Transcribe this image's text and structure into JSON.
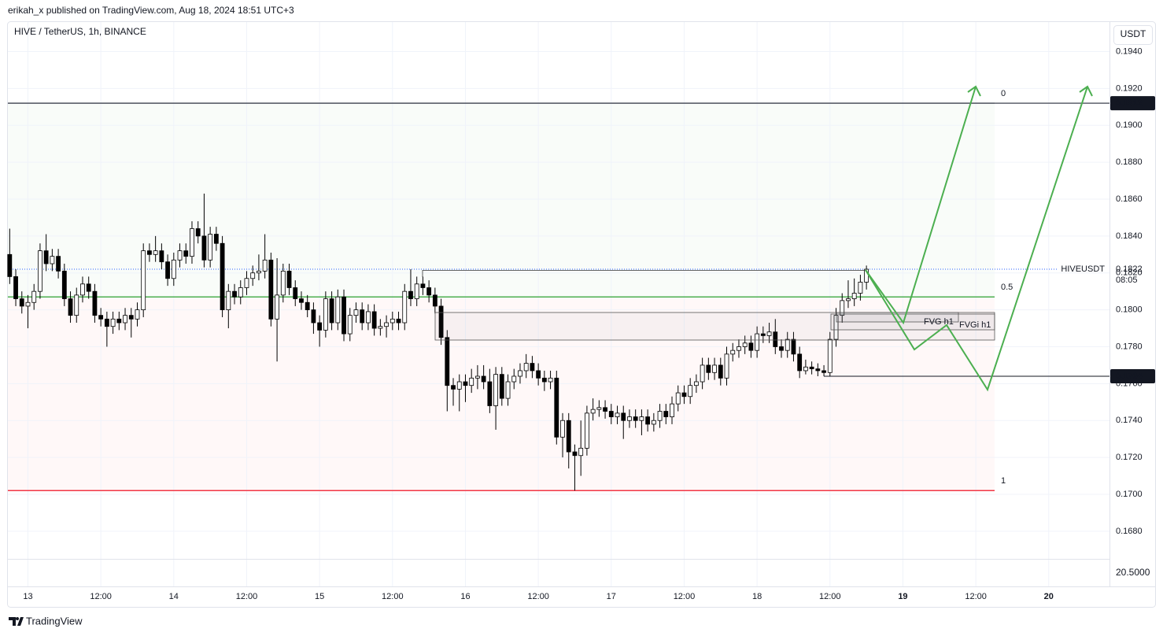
{
  "header": {
    "byline": "erikah_x published on TradingView.com, Aug 18, 2024 18:51 UTC+3"
  },
  "footer": {
    "brand": "TradingView"
  },
  "chart_data": {
    "type": "candlestick",
    "title": "HIVE / TetherUS, 1h, BINANCE",
    "currency": "USDT",
    "lower_pane_label": "20.5000",
    "grid": true,
    "ylim": [
      0.1665,
      0.1956
    ],
    "xlim": [
      -0.3,
      181
    ],
    "yticks": [
      {
        "value": 0.194,
        "label": "0.1940"
      },
      {
        "value": 0.192,
        "label": "0.1920"
      },
      {
        "value": 0.19,
        "label": "0.1900"
      },
      {
        "value": 0.188,
        "label": "0.1880"
      },
      {
        "value": 0.186,
        "label": "0.1860"
      },
      {
        "value": 0.184,
        "label": "0.1840"
      },
      {
        "value": 0.182,
        "label": "0.1820"
      },
      {
        "value": 0.18,
        "label": "0.1800"
      },
      {
        "value": 0.178,
        "label": "0.1780"
      },
      {
        "value": 0.176,
        "label": "0.1760"
      },
      {
        "value": 0.174,
        "label": "0.1740"
      },
      {
        "value": 0.172,
        "label": "0.1720"
      },
      {
        "value": 0.17,
        "label": "0.1700"
      },
      {
        "value": 0.168,
        "label": "0.1680"
      }
    ],
    "xticks": [
      {
        "value": 3,
        "label": "13"
      },
      {
        "value": 15,
        "label": "12:00"
      },
      {
        "value": 27,
        "label": "14"
      },
      {
        "value": 39,
        "label": "12:00"
      },
      {
        "value": 51,
        "label": "15"
      },
      {
        "value": 63,
        "label": "12:00"
      },
      {
        "value": 75,
        "label": "16"
      },
      {
        "value": 87,
        "label": "12:00"
      },
      {
        "value": 99,
        "label": "17"
      },
      {
        "value": 111,
        "label": "12:00"
      },
      {
        "value": 123,
        "label": "18"
      },
      {
        "value": 135,
        "label": "12:00"
      },
      {
        "value": 147,
        "label": "19"
      },
      {
        "value": 159,
        "label": "12:00"
      },
      {
        "value": 171,
        "label": "20"
      }
    ],
    "up_color": "#ffffff",
    "down_color": "#000000",
    "wick_color": "#000000",
    "fib_levels": [
      {
        "value": 0.1912,
        "label": "0",
        "color": "#787b86"
      },
      {
        "value": 0.1807,
        "label": "0.5",
        "color": "#4caf50"
      },
      {
        "value": 0.1702,
        "label": "1",
        "color": "#f23645"
      }
    ],
    "price_badges": [
      {
        "value": 0.1912,
        "label": "0.1912"
      },
      {
        "value": 0.1764,
        "label": "0.1764"
      }
    ],
    "last_price": {
      "value": 0.1822,
      "label": "0.1822",
      "symbol": "HIVEUSDT",
      "countdown": "08:05"
    },
    "annotations": [
      "FVG h1",
      "FVGi h1"
    ],
    "candles": [
      [
        0.183,
        0.1844,
        0.1814,
        0.1818
      ],
      [
        0.1818,
        0.1822,
        0.1802,
        0.1806
      ],
      [
        0.1806,
        0.181,
        0.1798,
        0.1802
      ],
      [
        0.1802,
        0.1808,
        0.179,
        0.1804
      ],
      [
        0.1804,
        0.1814,
        0.18,
        0.181
      ],
      [
        0.181,
        0.1836,
        0.1806,
        0.1832
      ],
      [
        0.1832,
        0.1841,
        0.1821,
        0.1825
      ],
      [
        0.1825,
        0.1833,
        0.1821,
        0.1829
      ],
      [
        0.1829,
        0.1833,
        0.1817,
        0.1821
      ],
      [
        0.1821,
        0.1825,
        0.1802,
        0.1806
      ],
      [
        0.1806,
        0.181,
        0.1793,
        0.1797
      ],
      [
        0.1797,
        0.1812,
        0.1793,
        0.1808
      ],
      [
        0.1808,
        0.1818,
        0.1804,
        0.1814
      ],
      [
        0.1814,
        0.1818,
        0.1806,
        0.181
      ],
      [
        0.181,
        0.1814,
        0.1793,
        0.1797
      ],
      [
        0.1797,
        0.1801,
        0.1791,
        0.1795
      ],
      [
        0.1795,
        0.1799,
        0.178,
        0.1791
      ],
      [
        0.1791,
        0.1799,
        0.1787,
        0.1795
      ],
      [
        0.1795,
        0.1799,
        0.1789,
        0.1793
      ],
      [
        0.1793,
        0.1801,
        0.1789,
        0.1797
      ],
      [
        0.1797,
        0.1801,
        0.1785,
        0.1795
      ],
      [
        0.1795,
        0.1804,
        0.1791,
        0.18
      ],
      [
        0.18,
        0.1836,
        0.1796,
        0.1832
      ],
      [
        0.1832,
        0.1836,
        0.1826,
        0.183
      ],
      [
        0.183,
        0.184,
        0.1826,
        0.1832
      ],
      [
        0.1832,
        0.1836,
        0.1822,
        0.1826
      ],
      [
        0.1826,
        0.183,
        0.1813,
        0.1817
      ],
      [
        0.1817,
        0.1831,
        0.1813,
        0.1827
      ],
      [
        0.1827,
        0.1836,
        0.1823,
        0.1832
      ],
      [
        0.1832,
        0.1836,
        0.1825,
        0.1829
      ],
      [
        0.1829,
        0.1848,
        0.1825,
        0.1844
      ],
      [
        0.1844,
        0.1848,
        0.1836,
        0.184
      ],
      [
        0.184,
        0.1863,
        0.1823,
        0.1827
      ],
      [
        0.1827,
        0.1845,
        0.1823,
        0.1841
      ],
      [
        0.1841,
        0.1845,
        0.1832,
        0.1836
      ],
      [
        0.1836,
        0.184,
        0.1796,
        0.18
      ],
      [
        0.18,
        0.1814,
        0.179,
        0.181
      ],
      [
        0.181,
        0.1814,
        0.1803,
        0.1807
      ],
      [
        0.1807,
        0.1816,
        0.1803,
        0.1812
      ],
      [
        0.1812,
        0.1821,
        0.1808,
        0.1817
      ],
      [
        0.1817,
        0.1824,
        0.1813,
        0.182
      ],
      [
        0.182,
        0.183,
        0.1816,
        0.1821
      ],
      [
        0.1821,
        0.1841,
        0.1817,
        0.1827
      ],
      [
        0.1827,
        0.1831,
        0.1791,
        0.1795
      ],
      [
        0.1795,
        0.1828,
        0.1772,
        0.1808
      ],
      [
        0.1808,
        0.1825,
        0.1804,
        0.1821
      ],
      [
        0.1821,
        0.1825,
        0.1808,
        0.1812
      ],
      [
        0.1812,
        0.1816,
        0.1802,
        0.1806
      ],
      [
        0.1806,
        0.181,
        0.18,
        0.1804
      ],
      [
        0.1804,
        0.1808,
        0.1796,
        0.18
      ],
      [
        0.18,
        0.1804,
        0.1787,
        0.1793
      ],
      [
        0.1793,
        0.1797,
        0.178,
        0.1789
      ],
      [
        0.1789,
        0.181,
        0.1785,
        0.1806
      ],
      [
        0.1806,
        0.181,
        0.1789,
        0.1793
      ],
      [
        0.1793,
        0.1811,
        0.1789,
        0.1807
      ],
      [
        0.1807,
        0.1811,
        0.1783,
        0.1787
      ],
      [
        0.1787,
        0.1801,
        0.1783,
        0.1797
      ],
      [
        0.1797,
        0.1804,
        0.1793,
        0.18
      ],
      [
        0.18,
        0.1804,
        0.1789,
        0.1793
      ],
      [
        0.1793,
        0.1803,
        0.1789,
        0.1799
      ],
      [
        0.1799,
        0.1803,
        0.1786,
        0.179
      ],
      [
        0.179,
        0.1795,
        0.1786,
        0.1791
      ],
      [
        0.1791,
        0.1797,
        0.1785,
        0.1793
      ],
      [
        0.1793,
        0.1799,
        0.1789,
        0.1795
      ],
      [
        0.1795,
        0.1799,
        0.1789,
        0.1793
      ],
      [
        0.1793,
        0.1814,
        0.1789,
        0.181
      ],
      [
        0.181,
        0.1822,
        0.1802,
        0.1806
      ],
      [
        0.1806,
        0.1818,
        0.1802,
        0.1814
      ],
      [
        0.1814,
        0.1818,
        0.1808,
        0.1812
      ],
      [
        0.1812,
        0.1816,
        0.1804,
        0.1808
      ],
      [
        0.1808,
        0.1812,
        0.1798,
        0.1802
      ],
      [
        0.1802,
        0.1806,
        0.1781,
        0.1785
      ],
      [
        0.1785,
        0.1789,
        0.1745,
        0.1759
      ],
      [
        0.1759,
        0.1763,
        0.1748,
        0.1757
      ],
      [
        0.1757,
        0.1765,
        0.1745,
        0.1761
      ],
      [
        0.1761,
        0.1765,
        0.175,
        0.1759
      ],
      [
        0.1759,
        0.1768,
        0.1755,
        0.1763
      ],
      [
        0.1763,
        0.177,
        0.1757,
        0.1764
      ],
      [
        0.1764,
        0.177,
        0.1757,
        0.1761
      ],
      [
        0.1761,
        0.1768,
        0.1744,
        0.1748
      ],
      [
        0.1748,
        0.1769,
        0.1735,
        0.1765
      ],
      [
        0.1765,
        0.1769,
        0.1748,
        0.1752
      ],
      [
        0.1752,
        0.1765,
        0.1748,
        0.1761
      ],
      [
        0.1761,
        0.1768,
        0.1757,
        0.1764
      ],
      [
        0.1764,
        0.1771,
        0.176,
        0.1767
      ],
      [
        0.1767,
        0.1776,
        0.1763,
        0.1771
      ],
      [
        0.1771,
        0.1775,
        0.1763,
        0.1767
      ],
      [
        0.1767,
        0.1771,
        0.1759,
        0.1763
      ],
      [
        0.1763,
        0.1767,
        0.1756,
        0.1761
      ],
      [
        0.1761,
        0.1767,
        0.1757,
        0.1763
      ],
      [
        0.1763,
        0.1767,
        0.1727,
        0.1731
      ],
      [
        0.1731,
        0.1744,
        0.172,
        0.174
      ],
      [
        0.174,
        0.1744,
        0.1714,
        0.1723
      ],
      [
        0.1723,
        0.1727,
        0.1702,
        0.1721
      ],
      [
        0.1721,
        0.174,
        0.171,
        0.1725
      ],
      [
        0.1725,
        0.1748,
        0.1721,
        0.1744
      ],
      [
        0.1744,
        0.1752,
        0.174,
        0.1746
      ],
      [
        0.1746,
        0.1751,
        0.1742,
        0.1747
      ],
      [
        0.1747,
        0.1751,
        0.1741,
        0.1745
      ],
      [
        0.1745,
        0.1749,
        0.1738,
        0.1742
      ],
      [
        0.1742,
        0.1748,
        0.1738,
        0.1744
      ],
      [
        0.1744,
        0.1748,
        0.173,
        0.174
      ],
      [
        0.174,
        0.1746,
        0.1736,
        0.1742
      ],
      [
        0.1742,
        0.1746,
        0.1736,
        0.174
      ],
      [
        0.174,
        0.1746,
        0.1732,
        0.1742
      ],
      [
        0.1742,
        0.1746,
        0.1734,
        0.1738
      ],
      [
        0.1738,
        0.1744,
        0.1734,
        0.174
      ],
      [
        0.174,
        0.1749,
        0.1736,
        0.1745
      ],
      [
        0.1745,
        0.1749,
        0.1738,
        0.1742
      ],
      [
        0.1742,
        0.1753,
        0.1738,
        0.1749
      ],
      [
        0.1749,
        0.1759,
        0.1745,
        0.1755
      ],
      [
        0.1755,
        0.1759,
        0.1749,
        0.1753
      ],
      [
        0.1753,
        0.1763,
        0.1749,
        0.1759
      ],
      [
        0.1759,
        0.1765,
        0.1755,
        0.1761
      ],
      [
        0.1761,
        0.1774,
        0.1757,
        0.177
      ],
      [
        0.177,
        0.1774,
        0.1762,
        0.1766
      ],
      [
        0.1766,
        0.1774,
        0.1762,
        0.177
      ],
      [
        0.177,
        0.1774,
        0.1759,
        0.1763
      ],
      [
        0.1763,
        0.178,
        0.1759,
        0.1776
      ],
      [
        0.1776,
        0.1782,
        0.1772,
        0.1778
      ],
      [
        0.1778,
        0.1784,
        0.1774,
        0.178
      ],
      [
        0.178,
        0.1786,
        0.1776,
        0.1782
      ],
      [
        0.1782,
        0.1786,
        0.1774,
        0.1778
      ],
      [
        0.1778,
        0.1791,
        0.1774,
        0.1787
      ],
      [
        0.1787,
        0.1791,
        0.1782,
        0.1786
      ],
      [
        0.1786,
        0.1793,
        0.1782,
        0.1788
      ],
      [
        0.1788,
        0.1795,
        0.1776,
        0.178
      ],
      [
        0.178,
        0.1784,
        0.1774,
        0.1778
      ],
      [
        0.1778,
        0.1788,
        0.1774,
        0.1784
      ],
      [
        0.1784,
        0.1788,
        0.1772,
        0.1776
      ],
      [
        0.1776,
        0.178,
        0.1763,
        0.1767
      ],
      [
        0.1767,
        0.1773,
        0.1765,
        0.1769
      ],
      [
        0.1769,
        0.1772,
        0.1765,
        0.1768
      ],
      [
        0.1768,
        0.1771,
        0.1764,
        0.1767
      ],
      [
        0.1767,
        0.177,
        0.1764,
        0.1766
      ],
      [
        0.1766,
        0.1788,
        0.1764,
        0.1784
      ],
      [
        0.1784,
        0.1801,
        0.178,
        0.1797
      ],
      [
        0.1797,
        0.1809,
        0.1793,
        0.1805
      ],
      [
        0.1805,
        0.1816,
        0.1801,
        0.1806
      ],
      [
        0.1806,
        0.1817,
        0.1802,
        0.1809
      ],
      [
        0.1809,
        0.1819,
        0.1805,
        0.1815
      ],
      [
        0.1815,
        0.1824,
        0.1811,
        0.1822
      ]
    ]
  }
}
